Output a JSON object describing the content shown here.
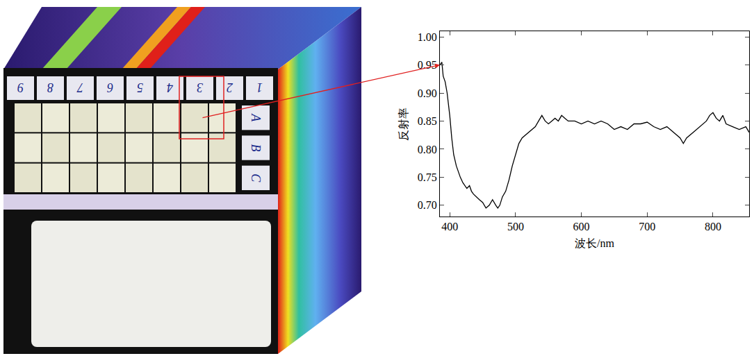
{
  "chart_data": {
    "type": "line",
    "xlabel": "波长/nm",
    "ylabel": "反射率",
    "x": [
      385,
      388,
      390,
      393,
      396,
      400,
      403,
      406,
      410,
      413,
      416,
      420,
      423,
      426,
      430,
      433,
      436,
      440,
      445,
      450,
      455,
      460,
      465,
      470,
      473,
      476,
      480,
      485,
      490,
      495,
      500,
      505,
      510,
      515,
      520,
      525,
      530,
      535,
      540,
      545,
      550,
      555,
      560,
      565,
      570,
      575,
      580,
      590,
      600,
      610,
      620,
      630,
      640,
      650,
      660,
      670,
      680,
      690,
      700,
      710,
      720,
      730,
      740,
      750,
      755,
      760,
      770,
      780,
      790,
      795,
      800,
      805,
      810,
      815,
      820,
      830,
      840,
      850,
      855
    ],
    "values": [
      0.95,
      0.955,
      0.93,
      0.92,
      0.9,
      0.86,
      0.82,
      0.79,
      0.77,
      0.76,
      0.75,
      0.74,
      0.735,
      0.73,
      0.735,
      0.725,
      0.72,
      0.715,
      0.71,
      0.705,
      0.695,
      0.7,
      0.71,
      0.7,
      0.695,
      0.7,
      0.715,
      0.725,
      0.745,
      0.77,
      0.79,
      0.81,
      0.82,
      0.825,
      0.83,
      0.835,
      0.84,
      0.85,
      0.86,
      0.85,
      0.845,
      0.85,
      0.855,
      0.85,
      0.86,
      0.855,
      0.85,
      0.85,
      0.845,
      0.85,
      0.845,
      0.85,
      0.845,
      0.835,
      0.84,
      0.835,
      0.845,
      0.845,
      0.848,
      0.84,
      0.835,
      0.84,
      0.83,
      0.82,
      0.81,
      0.82,
      0.83,
      0.84,
      0.85,
      0.86,
      0.865,
      0.855,
      0.85,
      0.86,
      0.845,
      0.84,
      0.835,
      0.84,
      0.83
    ],
    "color": "#000000",
    "line_style": "solid",
    "xlim": [
      385,
      855
    ],
    "xticks": [
      400,
      500,
      600,
      700,
      800
    ],
    "ylim": [
      0.68,
      1.01
    ],
    "yticks": [
      {
        "value": 0.7,
        "label": "0.70"
      },
      {
        "value": 0.75,
        "label": "0.75"
      },
      {
        "value": 0.8,
        "label": "0.80"
      },
      {
        "value": 0.85,
        "label": "0.85"
      },
      {
        "value": 0.9,
        "label": "0.90"
      },
      {
        "value": 0.95,
        "label": "0.95"
      },
      {
        "value": 1.0,
        "label": "1.00"
      }
    ],
    "grid": false
  },
  "image": {
    "column_labels": [
      "9",
      "8",
      "7",
      "6",
      "5",
      "4",
      "3",
      "2",
      "1"
    ],
    "row_labels": [
      "A",
      "B",
      "C"
    ]
  }
}
